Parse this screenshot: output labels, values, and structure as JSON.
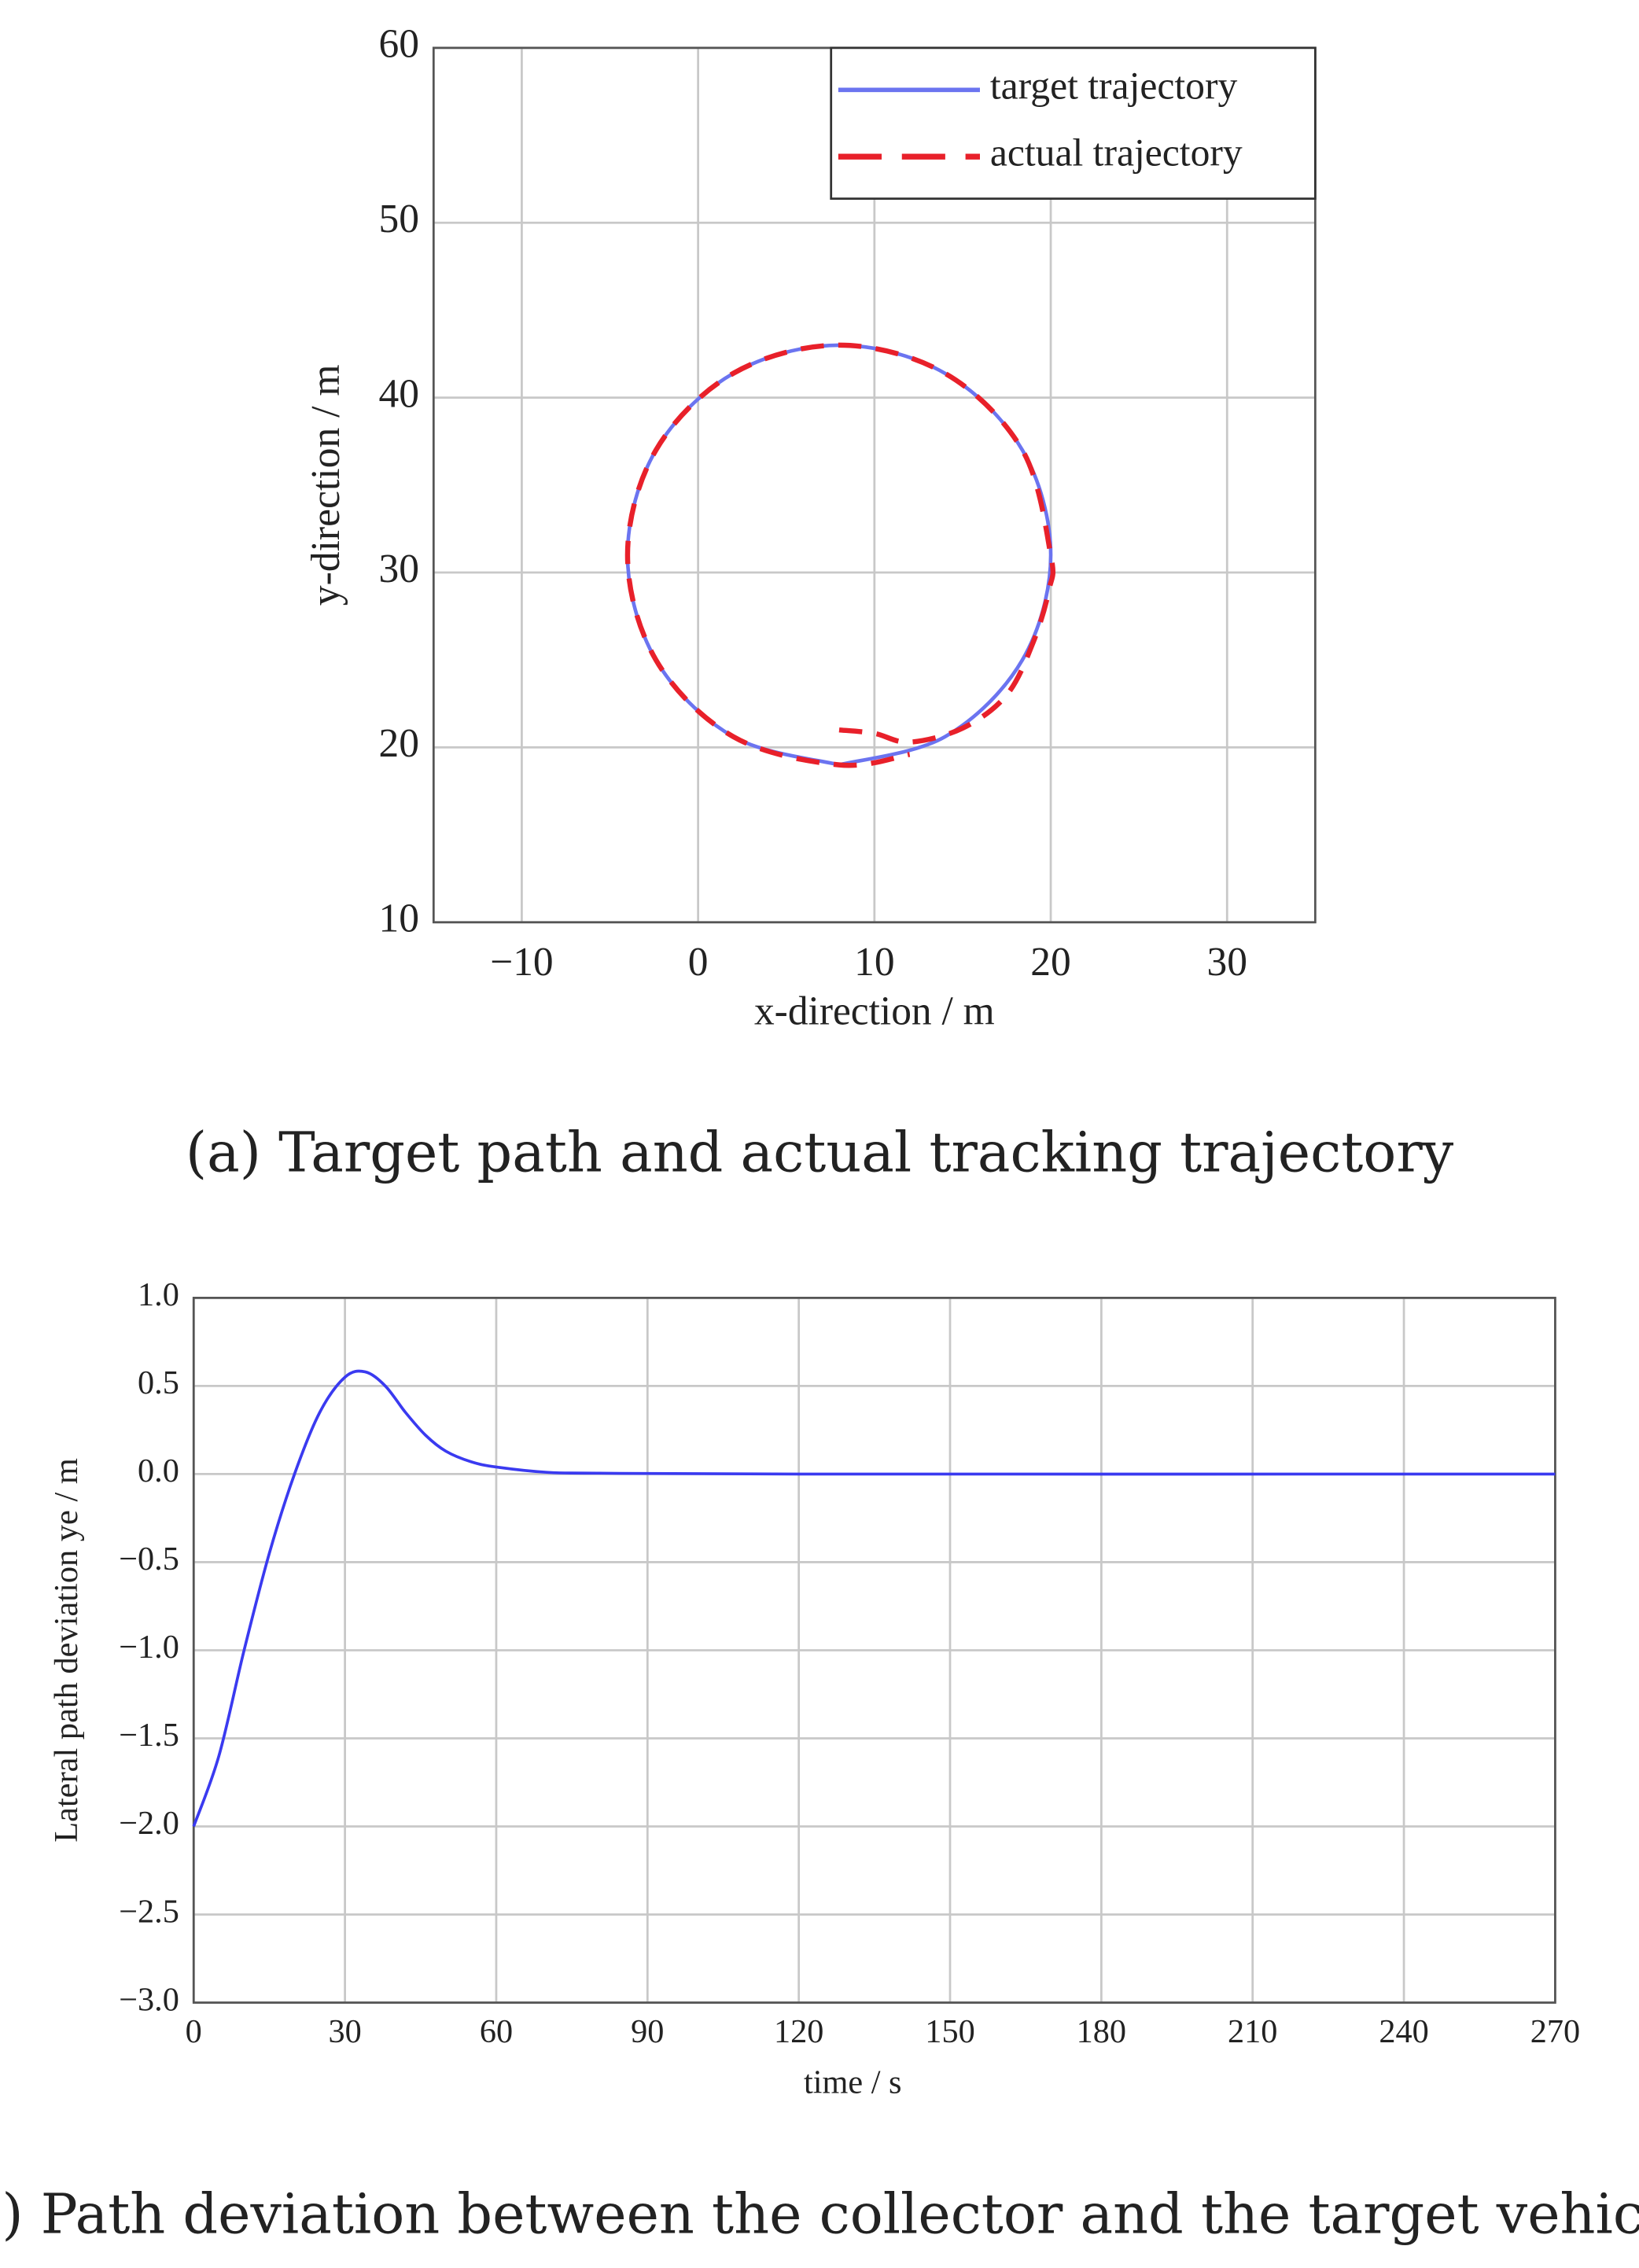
{
  "chart_data": [
    {
      "type": "line",
      "x_label": "x-direction / m",
      "y_label": "y-direction / m",
      "caption": "(a) Target path and actual tracking trajectory",
      "xlim": [
        -15,
        35
      ],
      "ylim": [
        10,
        60
      ],
      "xticks": [
        {
          "value": -10,
          "label": "−10"
        },
        0,
        10,
        20,
        30
      ],
      "yticks": [
        10,
        20,
        30,
        40,
        50,
        60
      ],
      "grid": true,
      "legend": "upper right",
      "series": [
        {
          "name": "target trajectory",
          "color": "#6b74f0",
          "style": "solid",
          "x": [
            8,
            14,
            18.39,
            20,
            18.39,
            14,
            8,
            2,
            -2.39,
            -4,
            -2.39,
            2,
            8
          ],
          "values": [
            19,
            20.61,
            25,
            31,
            37,
            41.39,
            43,
            41.39,
            37,
            31,
            25,
            20.61,
            19
          ]
        },
        {
          "name": "actual trajectory",
          "color": "#e8202a",
          "style": "dashed",
          "x": [
            8,
            10,
            12,
            15,
            17.5,
            19,
            19.9,
            20,
            18.39,
            14,
            8,
            2,
            -2.39,
            -4,
            -2.39,
            2,
            8,
            12
          ],
          "values": [
            21,
            20.8,
            20.3,
            21.1,
            23,
            26,
            29,
            31,
            37,
            41.39,
            43,
            41.39,
            37,
            31,
            25,
            20.61,
            19,
            19.6
          ]
        }
      ]
    },
    {
      "type": "line",
      "x_label": "time / s",
      "y_label": "Lateral path deviation ye / m",
      "caption": "(b) Path deviation between the collector and the target vehicle",
      "xlim": [
        0,
        270
      ],
      "ylim": [
        -3,
        1
      ],
      "xticks": [
        0,
        30,
        60,
        90,
        120,
        150,
        180,
        210,
        240,
        270
      ],
      "yticks": [
        {
          "value": -3,
          "label": "−3.0"
        },
        {
          "value": -2.5,
          "label": "−2.5"
        },
        {
          "value": -2,
          "label": "−2.0"
        },
        {
          "value": -1.5,
          "label": "−1.5"
        },
        {
          "value": -1,
          "label": "−1.0"
        },
        {
          "value": -0.5,
          "label": "−0.5"
        },
        {
          "value": 0,
          "label": "0.0"
        },
        {
          "value": 0.5,
          "label": "0.5"
        },
        {
          "value": 1,
          "label": "1.0"
        }
      ],
      "grid": true,
      "color": "#3a3af0",
      "x": [
        0,
        5,
        10,
        15,
        20,
        25,
        30,
        34,
        38,
        42,
        46,
        50,
        55,
        60,
        70,
        80,
        120,
        270
      ],
      "values": [
        -2.0,
        -1.6,
        -1.0,
        -0.45,
        0.0,
        0.35,
        0.55,
        0.58,
        0.5,
        0.35,
        0.22,
        0.13,
        0.07,
        0.04,
        0.01,
        0.005,
        0,
        0
      ]
    }
  ]
}
